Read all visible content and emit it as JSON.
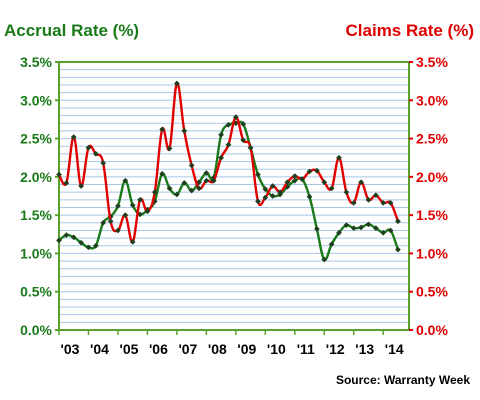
{
  "chart_data": {
    "type": "line",
    "title_left": "Accrual Rate (%)",
    "title_right": "Claims Rate (%)",
    "source": "Source: Warranty Week",
    "ylim": [
      0,
      3.5
    ],
    "yticks": [
      "0.0%",
      "0.5%",
      "1.0%",
      "1.5%",
      "2.0%",
      "2.5%",
      "3.0%",
      "3.5%"
    ],
    "xlim": [
      2003,
      2014.875
    ],
    "xticks": [
      {
        "label": "'03",
        "x": 2003
      },
      {
        "label": "'04",
        "x": 2004
      },
      {
        "label": "'05",
        "x": 2005
      },
      {
        "label": "'06",
        "x": 2006
      },
      {
        "label": "'07",
        "x": 2007
      },
      {
        "label": "'08",
        "x": 2008
      },
      {
        "label": "'09",
        "x": 2009
      },
      {
        "label": "'10",
        "x": 2010
      },
      {
        "label": "'11",
        "x": 2011
      },
      {
        "label": "'12",
        "x": 2012
      },
      {
        "label": "'13",
        "x": 2013
      },
      {
        "label": "'14",
        "x": 2014
      }
    ],
    "colors": {
      "accrual": "#1a7a1a",
      "claims": "#e00000",
      "grid": "#a8c8e8",
      "frame": "#5aa02c",
      "marker": "#1f3f1f"
    },
    "series": [
      {
        "key": "accrual",
        "x": [
          2003.0,
          2003.25,
          2003.5,
          2003.75,
          2004.0,
          2004.25,
          2004.5,
          2004.75,
          2005.0,
          2005.25,
          2005.5,
          2005.75,
          2006.0,
          2006.25,
          2006.5,
          2006.75,
          2007.0,
          2007.25,
          2007.5,
          2007.75,
          2008.0,
          2008.25,
          2008.5,
          2008.75,
          2009.0,
          2009.25,
          2009.5,
          2009.75,
          2010.0,
          2010.25,
          2010.5,
          2010.75,
          2011.0,
          2011.25,
          2011.5,
          2011.75,
          2012.0,
          2012.25,
          2012.5,
          2012.75,
          2013.0,
          2013.25,
          2013.5,
          2013.75,
          2014.0,
          2014.25,
          2014.5
        ],
        "values": [
          1.17,
          1.24,
          1.21,
          1.14,
          1.08,
          1.1,
          1.4,
          1.48,
          1.62,
          1.95,
          1.63,
          1.51,
          1.57,
          1.68,
          2.04,
          1.85,
          1.77,
          1.92,
          1.82,
          1.93,
          2.05,
          1.99,
          2.55,
          2.68,
          2.7,
          2.69,
          2.38,
          2.03,
          1.84,
          1.75,
          1.77,
          1.87,
          1.95,
          1.97,
          1.74,
          1.32,
          0.92,
          1.12,
          1.27,
          1.37,
          1.33,
          1.34,
          1.38,
          1.33,
          1.27,
          1.3,
          1.05
        ]
      },
      {
        "key": "claims",
        "x": [
          2003.0,
          2003.25,
          2003.5,
          2003.75,
          2004.0,
          2004.25,
          2004.5,
          2004.75,
          2005.0,
          2005.25,
          2005.5,
          2005.75,
          2006.0,
          2006.25,
          2006.5,
          2006.75,
          2007.0,
          2007.25,
          2007.5,
          2007.75,
          2008.0,
          2008.25,
          2008.5,
          2008.75,
          2009.0,
          2009.25,
          2009.5,
          2009.75,
          2010.0,
          2010.25,
          2010.5,
          2010.75,
          2011.0,
          2011.25,
          2011.5,
          2011.75,
          2012.0,
          2012.25,
          2012.5,
          2012.75,
          2013.0,
          2013.25,
          2013.5,
          2013.75,
          2014.0,
          2014.25,
          2014.5
        ],
        "values": [
          2.03,
          1.92,
          2.52,
          1.88,
          2.38,
          2.3,
          2.18,
          1.42,
          1.3,
          1.5,
          1.15,
          1.7,
          1.55,
          1.8,
          2.62,
          2.37,
          3.22,
          2.6,
          2.15,
          1.85,
          1.95,
          1.95,
          2.25,
          2.42,
          2.78,
          2.48,
          2.38,
          1.68,
          1.73,
          1.88,
          1.8,
          1.93,
          2.01,
          1.97,
          2.07,
          2.08,
          1.93,
          1.85,
          2.25,
          1.8,
          1.66,
          1.93,
          1.7,
          1.76,
          1.66,
          1.66,
          1.42
        ]
      }
    ]
  }
}
